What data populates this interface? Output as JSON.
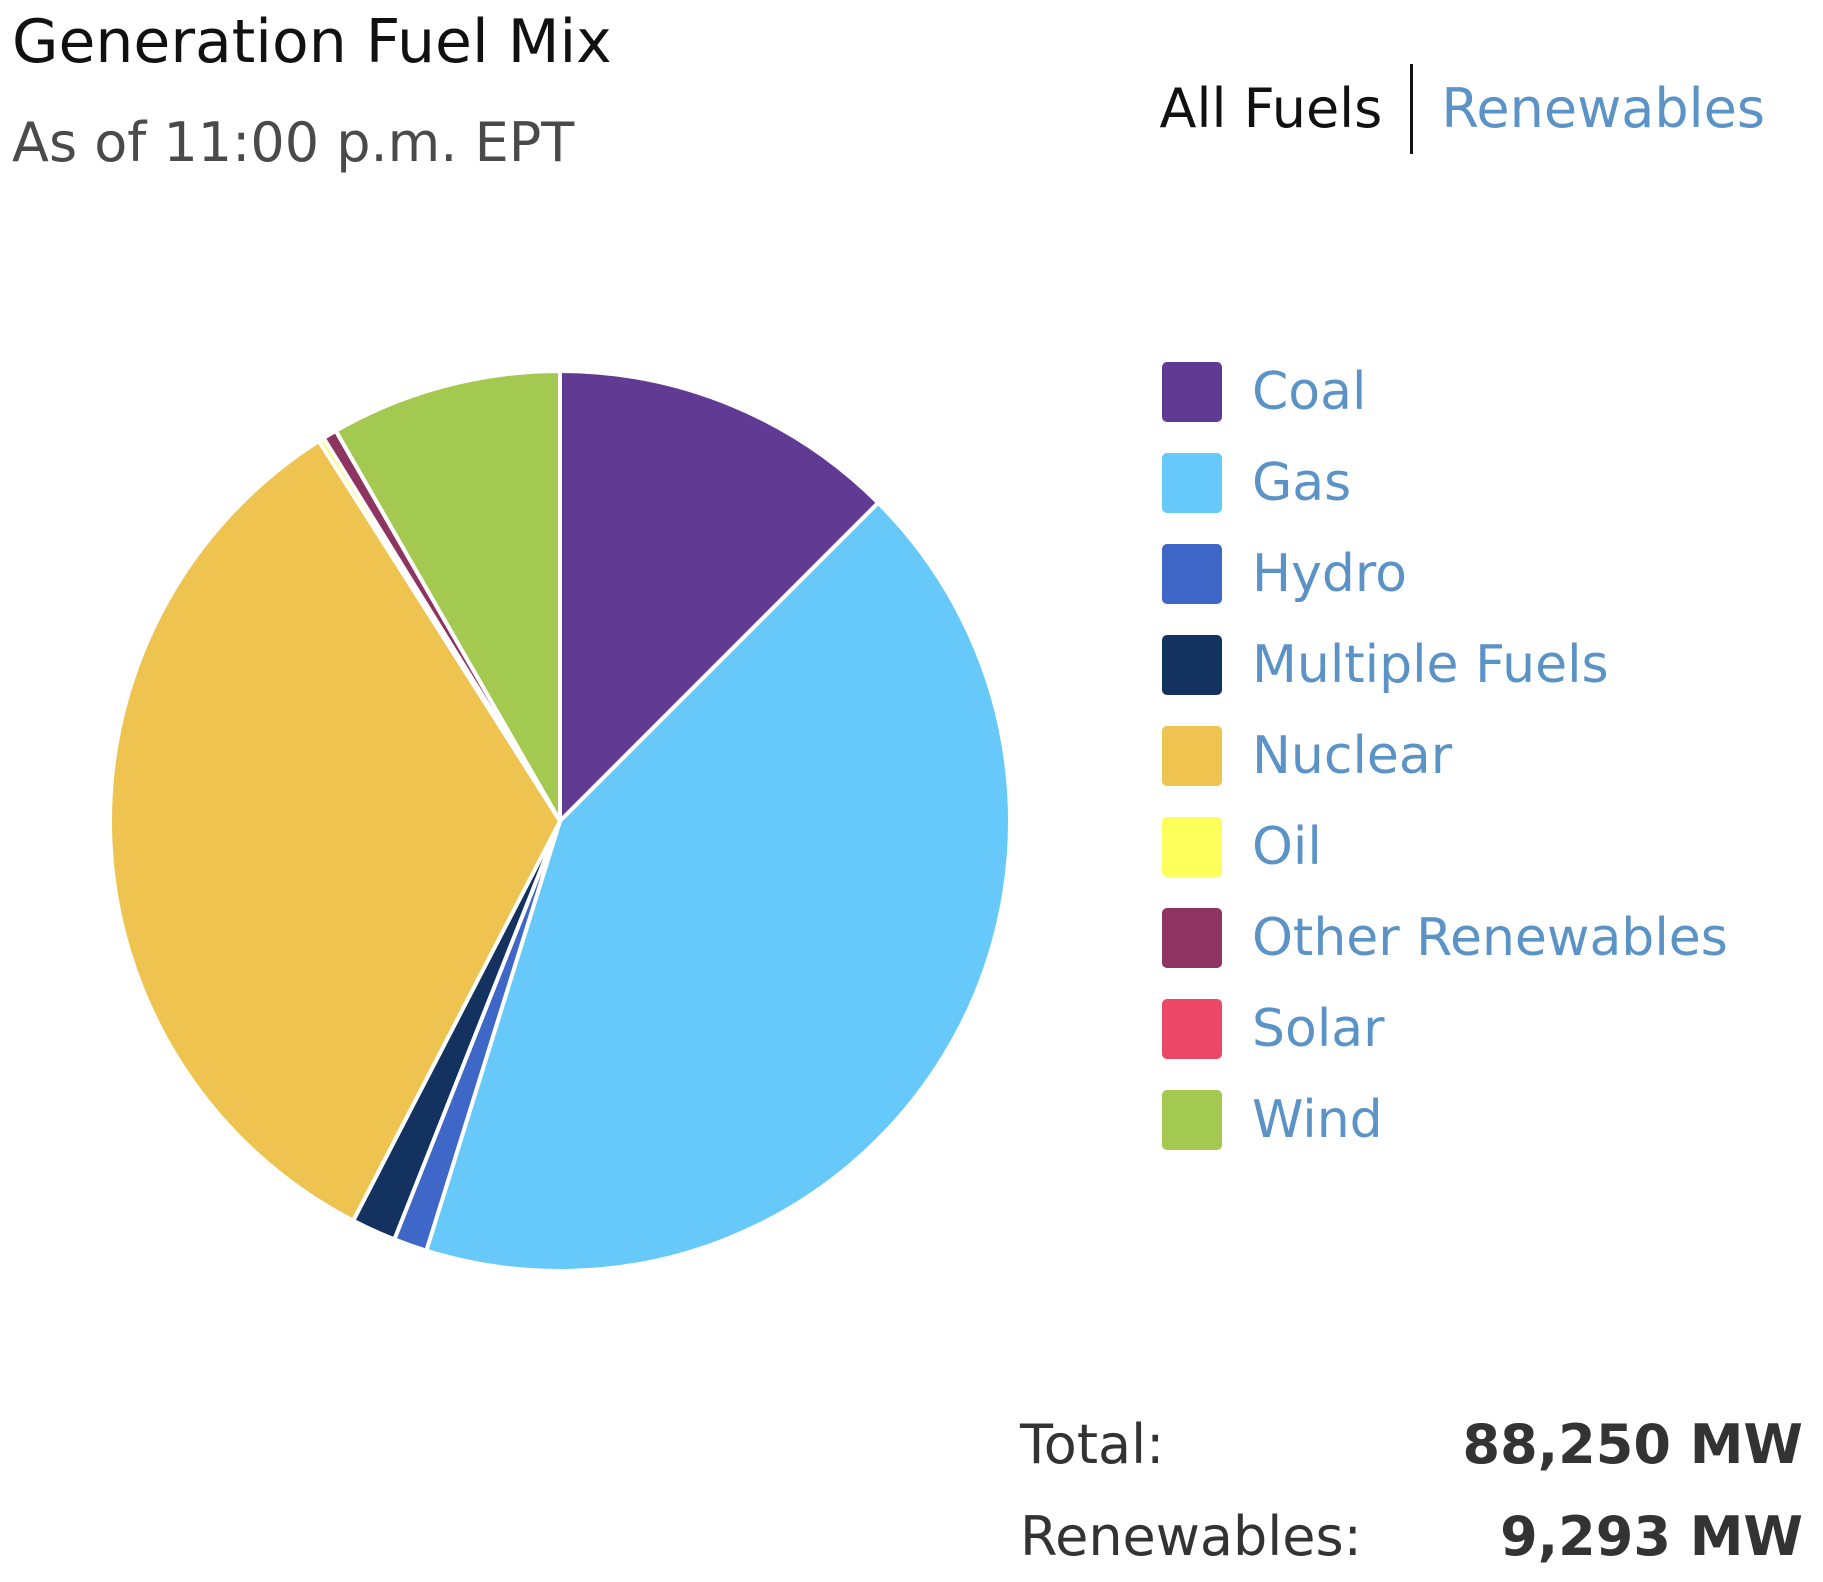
{
  "header": {
    "title": "Generation Fuel Mix",
    "subtitle": "As of 11:00 p.m. EPT"
  },
  "toggle": {
    "all_fuels": "All Fuels",
    "renewables": "Renewables"
  },
  "colors": {
    "accent_link": "#5b93c7",
    "text_dark": "#111111"
  },
  "chart_data": {
    "type": "pie",
    "title": "Generation Fuel Mix",
    "legend_position": "right",
    "slices": [
      {
        "label": "Coal",
        "value": 12.5,
        "color": "#613a93"
      },
      {
        "label": "Gas",
        "value": 42.3,
        "color": "#66c9f9"
      },
      {
        "label": "Hydro",
        "value": 1.2,
        "color": "#3e67c7"
      },
      {
        "label": "Multiple Fuels",
        "value": 1.6,
        "color": "#143260"
      },
      {
        "label": "Nuclear",
        "value": 33.4,
        "color": "#eec34f"
      },
      {
        "label": "Oil",
        "value": 0.2,
        "color": "#ffff5c"
      },
      {
        "label": "Other Renewables",
        "value": 0.5,
        "color": "#8e3461"
      },
      {
        "label": "Solar",
        "value": 0.0,
        "color": "#ec4868"
      },
      {
        "label": "Wind",
        "value": 8.3,
        "color": "#a4c950"
      }
    ]
  },
  "totals": {
    "total_label": "Total:",
    "total_value": "88,250 MW",
    "renewables_label": "Renewables:",
    "renewables_value": "9,293 MW"
  }
}
